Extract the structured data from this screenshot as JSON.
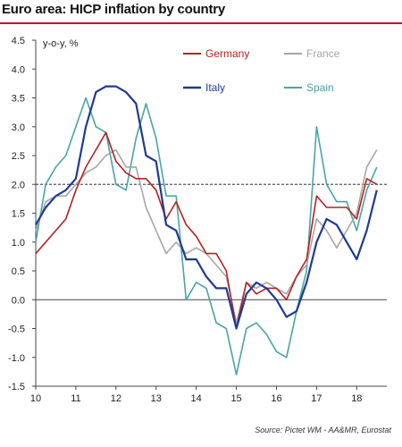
{
  "title": "Euro area: HICP inflation by country",
  "source": "Source: Pictet WM - AA&MR, Eurostat",
  "colors": {
    "Germany": "#b22222",
    "France": "#a6a6a6",
    "Italy": "#1f3a93",
    "Spain": "#4aa3a8",
    "reference": "#555555"
  },
  "chart_data": {
    "type": "line",
    "ylabel": "y-o-y, %",
    "xlim": [
      2010,
      2018.75
    ],
    "ylim": [
      -1.5,
      4.5
    ],
    "yticks": [
      "4.5",
      "4.0",
      "3.5",
      "3.0",
      "2.5",
      "2.0",
      "1.5",
      "1.0",
      "0.5",
      "0.0",
      "-0.5",
      "-1.0",
      "-1.5"
    ],
    "xticks": [
      "10",
      "11",
      "12",
      "13",
      "14",
      "15",
      "16",
      "17",
      "18"
    ],
    "reference_line": 2.0,
    "series": [
      {
        "name": "Germany",
        "x": [
          2010.0,
          2010.25,
          2010.5,
          2010.75,
          2011.0,
          2011.25,
          2011.5,
          2011.75,
          2012.0,
          2012.25,
          2012.5,
          2012.75,
          2013.0,
          2013.25,
          2013.5,
          2013.75,
          2014.0,
          2014.25,
          2014.5,
          2014.75,
          2015.0,
          2015.25,
          2015.5,
          2015.75,
          2016.0,
          2016.25,
          2016.5,
          2016.75,
          2017.0,
          2017.25,
          2017.5,
          2017.75,
          2018.0,
          2018.25,
          2018.5
        ],
        "values": [
          0.8,
          1.0,
          1.2,
          1.4,
          1.9,
          2.3,
          2.6,
          2.9,
          2.4,
          2.2,
          2.1,
          2.1,
          1.9,
          1.4,
          1.7,
          1.3,
          1.1,
          0.8,
          0.8,
          0.5,
          -0.5,
          0.3,
          0.1,
          0.2,
          0.2,
          0.0,
          0.4,
          0.7,
          1.8,
          1.6,
          1.6,
          1.6,
          1.4,
          2.1,
          2.0
        ]
      },
      {
        "name": "France",
        "x": [
          2010.0,
          2010.25,
          2010.5,
          2010.75,
          2011.0,
          2011.25,
          2011.5,
          2011.75,
          2012.0,
          2012.25,
          2012.5,
          2012.75,
          2013.0,
          2013.25,
          2013.5,
          2013.75,
          2014.0,
          2014.25,
          2014.5,
          2014.75,
          2015.0,
          2015.25,
          2015.5,
          2015.75,
          2016.0,
          2016.25,
          2016.5,
          2016.75,
          2017.0,
          2017.25,
          2017.5,
          2017.75,
          2018.0,
          2018.25,
          2018.5
        ],
        "values": [
          1.2,
          1.7,
          1.8,
          1.8,
          2.0,
          2.2,
          2.3,
          2.5,
          2.6,
          2.3,
          2.3,
          1.6,
          1.2,
          0.8,
          1.0,
          0.8,
          0.9,
          0.8,
          0.6,
          0.4,
          -0.4,
          0.3,
          0.2,
          0.3,
          0.2,
          0.1,
          0.4,
          0.6,
          1.4,
          1.2,
          0.9,
          1.2,
          1.5,
          2.3,
          2.6
        ]
      },
      {
        "name": "Italy",
        "x": [
          2010.0,
          2010.25,
          2010.5,
          2010.75,
          2011.0,
          2011.25,
          2011.5,
          2011.75,
          2012.0,
          2012.25,
          2012.5,
          2012.75,
          2013.0,
          2013.25,
          2013.5,
          2013.75,
          2014.0,
          2014.25,
          2014.5,
          2014.75,
          2015.0,
          2015.25,
          2015.5,
          2015.75,
          2016.0,
          2016.25,
          2016.5,
          2016.75,
          2017.0,
          2017.25,
          2017.5,
          2017.75,
          2018.0,
          2018.25,
          2018.5
        ],
        "values": [
          1.3,
          1.6,
          1.8,
          1.9,
          2.1,
          3.0,
          3.6,
          3.7,
          3.7,
          3.6,
          3.4,
          2.5,
          2.4,
          1.3,
          1.2,
          0.7,
          0.7,
          0.4,
          0.2,
          0.2,
          -0.5,
          0.1,
          0.3,
          0.2,
          0.0,
          -0.3,
          -0.2,
          0.3,
          1.0,
          1.4,
          1.3,
          1.0,
          0.7,
          1.2,
          1.9
        ]
      },
      {
        "name": "Spain",
        "x": [
          2010.0,
          2010.25,
          2010.5,
          2010.75,
          2011.0,
          2011.25,
          2011.5,
          2011.75,
          2012.0,
          2012.25,
          2012.5,
          2012.75,
          2013.0,
          2013.25,
          2013.5,
          2013.75,
          2014.0,
          2014.25,
          2014.5,
          2014.75,
          2015.0,
          2015.25,
          2015.5,
          2015.75,
          2016.0,
          2016.25,
          2016.5,
          2016.75,
          2017.0,
          2017.25,
          2017.5,
          2017.75,
          2018.0,
          2018.25,
          2018.5
        ],
        "values": [
          1.0,
          2.0,
          2.3,
          2.5,
          3.0,
          3.5,
          3.0,
          2.9,
          2.0,
          1.9,
          2.8,
          3.4,
          2.8,
          1.8,
          1.8,
          0.0,
          0.3,
          0.2,
          -0.4,
          -0.5,
          -1.3,
          -0.5,
          -0.4,
          -0.6,
          -0.9,
          -1.0,
          -0.2,
          0.5,
          3.0,
          2.0,
          1.7,
          1.7,
          1.2,
          1.9,
          2.3
        ]
      }
    ]
  }
}
